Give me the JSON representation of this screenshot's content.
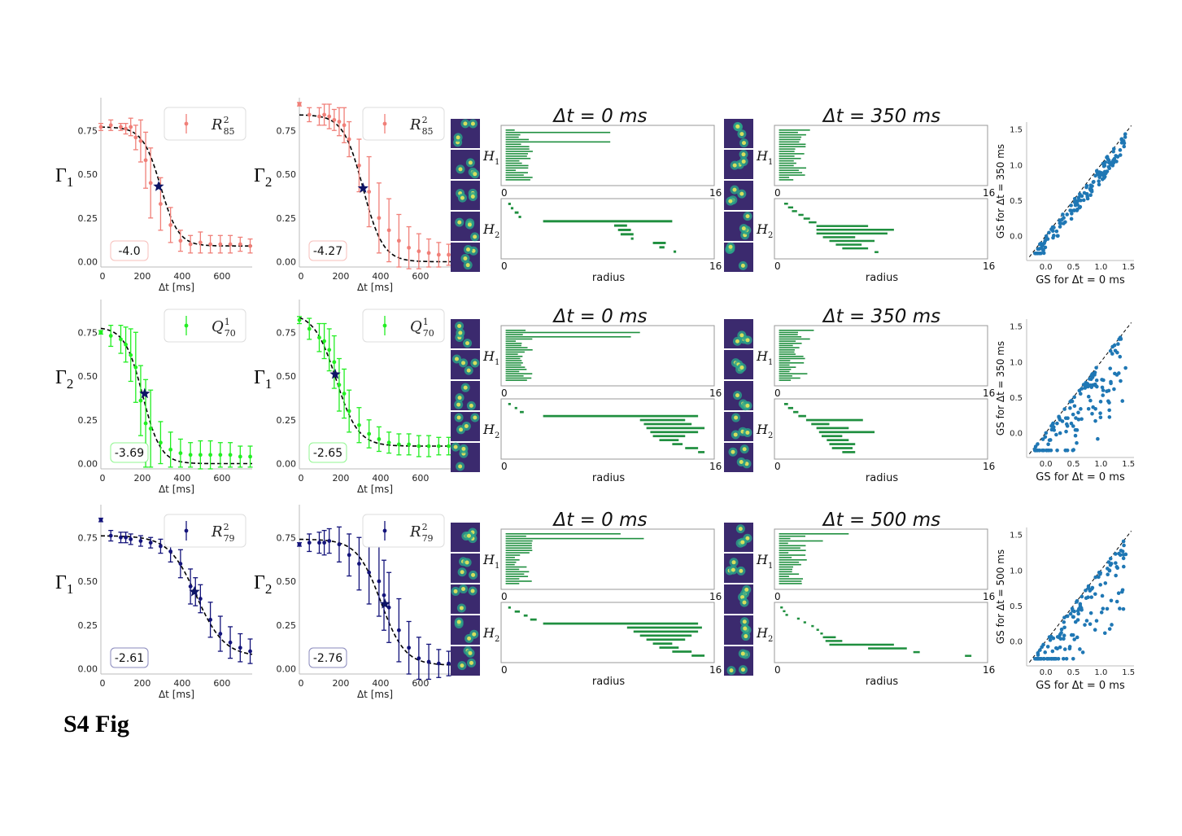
{
  "figure_label": "S4 Fig",
  "xlabel": "Δt [ms]",
  "radius_label": "radius",
  "h1_label": "H1",
  "h2_label": "H2",
  "colors": {
    "red": "#f07f78",
    "green": "#22ee22",
    "navy": "#13137a",
    "bar": "#1f8f3f",
    "scatter": "#1f77b4"
  },
  "rows": [
    {
      "left": {
        "gamma": "Γ1",
        "legend": "R²₈₅",
        "sup": "2",
        "sub": "85",
        "sym": "R",
        "value": "-4.0",
        "color": "red"
      },
      "right": {
        "gamma": "Γ2",
        "legend": "R²₈₅",
        "sup": "2",
        "sub": "85",
        "sym": "R",
        "value": "-4.27",
        "color": "red"
      },
      "dt_left": "Δt = 0 ms",
      "dt_right": "Δt = 350 ms",
      "scatter_ylabel": "GS for Δt = 350 ms",
      "scatter_xlabel": "GS for Δt = 0 ms"
    },
    {
      "left": {
        "gamma": "Γ2",
        "legend": "Q¹₇₀",
        "sup": "1",
        "sub": "70",
        "sym": "Q",
        "value": "-3.69",
        "color": "green"
      },
      "right": {
        "gamma": "Γ1",
        "legend": "Q¹₇₀",
        "sup": "1",
        "sub": "70",
        "sym": "Q",
        "value": "-2.65",
        "color": "green"
      },
      "dt_left": "Δt = 0 ms",
      "dt_right": "Δt = 350 ms",
      "scatter_ylabel": "GS for Δt = 350 ms",
      "scatter_xlabel": "GS for Δt = 0 ms"
    },
    {
      "left": {
        "gamma": "Γ1",
        "legend": "R²₇₉",
        "sup": "2",
        "sub": "79",
        "sym": "R",
        "value": "-2.61",
        "color": "navy"
      },
      "right": {
        "gamma": "Γ2",
        "legend": "R²₇₉",
        "sup": "2",
        "sub": "79",
        "sym": "R",
        "value": "-2.76",
        "color": "navy"
      },
      "dt_left": "Δt = 0 ms",
      "dt_right": "Δt = 500 ms",
      "scatter_ylabel": "GS for Δt = 500 ms",
      "scatter_xlabel": "GS for Δt = 0 ms"
    }
  ],
  "chart_data": [
    {
      "type": "line",
      "id": "r1l",
      "title": "",
      "xlabel": "Δt [ms]",
      "ylabel": "Γ1",
      "xticks": [
        0,
        200,
        400,
        600
      ],
      "yticks": [
        0.0,
        0.25,
        0.5,
        0.75
      ],
      "x": [
        0,
        50,
        100,
        125,
        150,
        175,
        200,
        225,
        250,
        300,
        350,
        400,
        450,
        500,
        550,
        600,
        650,
        700,
        750
      ],
      "y": [
        0.77,
        0.78,
        0.77,
        0.76,
        0.77,
        0.71,
        0.69,
        0.58,
        0.45,
        0.33,
        0.21,
        0.12,
        0.1,
        0.11,
        0.1,
        0.1,
        0.1,
        0.1,
        0.09
      ],
      "err": [
        0.02,
        0.03,
        0.02,
        0.03,
        0.05,
        0.07,
        0.12,
        0.16,
        0.2,
        0.15,
        0.1,
        0.06,
        0.05,
        0.06,
        0.05,
        0.05,
        0.05,
        0.04,
        0.04
      ],
      "fit": {
        "low": 0.09,
        "high": 0.77,
        "mid": 300,
        "width": 45
      },
      "star": [
        290,
        0.43
      ]
    },
    {
      "type": "line",
      "id": "r1r",
      "title": "",
      "xlabel": "Δt [ms]",
      "ylabel": "Γ2",
      "xticks": [
        0,
        200,
        400,
        600
      ],
      "yticks": [
        0.0,
        0.25,
        0.5,
        0.75
      ],
      "x": [
        0,
        50,
        100,
        125,
        150,
        175,
        200,
        225,
        250,
        300,
        350,
        400,
        450,
        500,
        550,
        600,
        650,
        700,
        750
      ],
      "y": [
        0.9,
        0.84,
        0.83,
        0.84,
        0.83,
        0.81,
        0.8,
        0.78,
        0.7,
        0.55,
        0.4,
        0.25,
        0.18,
        0.12,
        0.08,
        0.06,
        0.05,
        0.04,
        0.04
      ],
      "err": [
        0.01,
        0.04,
        0.05,
        0.06,
        0.07,
        0.06,
        0.08,
        0.1,
        0.1,
        0.15,
        0.2,
        0.2,
        0.18,
        0.15,
        0.12,
        0.1,
        0.08,
        0.07,
        0.06
      ],
      "fit": {
        "low": 0.0,
        "high": 0.84,
        "mid": 320,
        "width": 50
      },
      "star": [
        320,
        0.42
      ]
    },
    {
      "type": "line",
      "id": "r2l",
      "title": "",
      "xlabel": "Δt [ms]",
      "ylabel": "Γ2",
      "xticks": [
        0,
        200,
        400,
        600
      ],
      "yticks": [
        0.0,
        0.25,
        0.5,
        0.75
      ],
      "x": [
        0,
        50,
        100,
        125,
        150,
        175,
        200,
        225,
        250,
        300,
        350,
        400,
        450,
        500,
        550,
        600,
        650,
        700,
        750
      ],
      "y": [
        0.75,
        0.73,
        0.71,
        0.68,
        0.62,
        0.55,
        0.36,
        0.23,
        0.2,
        0.12,
        0.08,
        0.06,
        0.05,
        0.05,
        0.05,
        0.05,
        0.05,
        0.04,
        0.04
      ],
      "err": [
        0.01,
        0.06,
        0.08,
        0.1,
        0.15,
        0.2,
        0.2,
        0.25,
        0.22,
        0.12,
        0.1,
        0.08,
        0.07,
        0.08,
        0.08,
        0.07,
        0.07,
        0.06,
        0.06
      ],
      "fit": {
        "low": 0.0,
        "high": 0.78,
        "mid": 210,
        "width": 45
      },
      "star": [
        220,
        0.4
      ]
    },
    {
      "type": "line",
      "id": "r2r",
      "title": "",
      "xlabel": "Δt [ms]",
      "ylabel": "Γ1",
      "xticks": [
        0,
        200,
        400,
        600
      ],
      "yticks": [
        0.0,
        0.25,
        0.5,
        0.75
      ],
      "x": [
        0,
        50,
        100,
        125,
        150,
        175,
        200,
        225,
        250,
        300,
        350,
        400,
        450,
        500,
        550,
        600,
        650,
        700,
        750
      ],
      "y": [
        0.82,
        0.77,
        0.72,
        0.7,
        0.65,
        0.58,
        0.45,
        0.4,
        0.3,
        0.22,
        0.17,
        0.14,
        0.12,
        0.11,
        0.11,
        0.1,
        0.1,
        0.1,
        0.1
      ],
      "err": [
        0.02,
        0.06,
        0.08,
        0.1,
        0.12,
        0.15,
        0.15,
        0.14,
        0.12,
        0.1,
        0.08,
        0.07,
        0.06,
        0.06,
        0.06,
        0.06,
        0.06,
        0.05,
        0.05
      ],
      "fit": {
        "low": 0.1,
        "high": 0.86,
        "mid": 185,
        "width": 55
      },
      "star": [
        180,
        0.51
      ]
    },
    {
      "type": "line",
      "id": "r3l",
      "title": "",
      "xlabel": "Δt [ms]",
      "ylabel": "Γ1",
      "xticks": [
        0,
        200,
        400,
        600
      ],
      "yticks": [
        0.0,
        0.25,
        0.5,
        0.75
      ],
      "x": [
        0,
        50,
        100,
        125,
        150,
        200,
        250,
        300,
        350,
        400,
        450,
        475,
        500,
        550,
        600,
        650,
        700,
        750
      ],
      "y": [
        0.85,
        0.76,
        0.75,
        0.75,
        0.74,
        0.73,
        0.72,
        0.7,
        0.67,
        0.6,
        0.47,
        0.44,
        0.4,
        0.28,
        0.2,
        0.15,
        0.12,
        0.1
      ],
      "err": [
        0.01,
        0.03,
        0.03,
        0.03,
        0.03,
        0.03,
        0.03,
        0.04,
        0.06,
        0.08,
        0.1,
        0.08,
        0.08,
        0.1,
        0.1,
        0.09,
        0.08,
        0.07
      ],
      "fit": {
        "low": 0.07,
        "high": 0.76,
        "mid": 480,
        "width": 70
      },
      "star": [
        470,
        0.44
      ]
    },
    {
      "type": "line",
      "id": "r3r",
      "title": "",
      "xlabel": "Δt [ms]",
      "ylabel": "Γ2",
      "xticks": [
        0,
        200,
        400,
        600
      ],
      "yticks": [
        0.0,
        0.25,
        0.5,
        0.75
      ],
      "x": [
        0,
        50,
        100,
        125,
        150,
        200,
        250,
        300,
        350,
        400,
        425,
        450,
        500,
        550,
        600,
        650,
        700,
        750
      ],
      "y": [
        0.71,
        0.72,
        0.72,
        0.72,
        0.73,
        0.71,
        0.65,
        0.6,
        0.55,
        0.5,
        0.42,
        0.35,
        0.22,
        0.12,
        0.06,
        0.04,
        0.03,
        0.03
      ],
      "err": [
        0.01,
        0.05,
        0.06,
        0.07,
        0.07,
        0.1,
        0.12,
        0.15,
        0.18,
        0.2,
        0.2,
        0.2,
        0.18,
        0.15,
        0.12,
        0.1,
        0.08,
        0.07
      ],
      "fit": {
        "low": 0.02,
        "high": 0.74,
        "mid": 410,
        "width": 60
      },
      "star": [
        430,
        0.37
      ]
    }
  ]
}
